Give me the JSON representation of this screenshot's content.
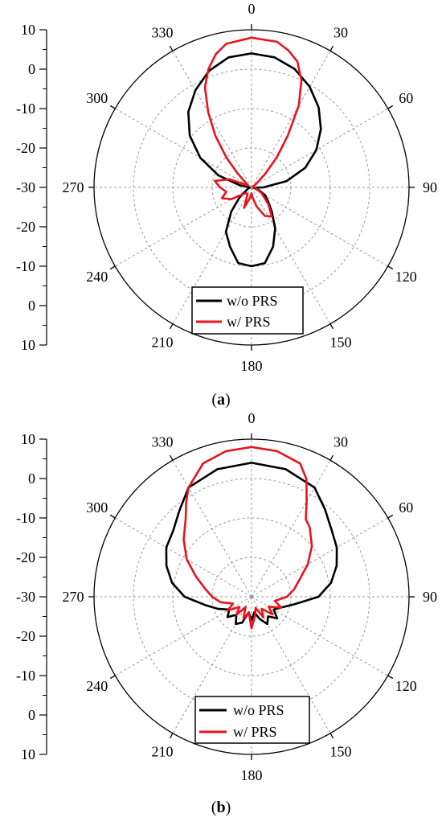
{
  "figure": {
    "captions": [
      "(a)",
      "(b)"
    ]
  },
  "colors": {
    "series_without": "#000000",
    "series_with": "#e8141b",
    "grid": "#9a9a9a",
    "legend_border": "#000000"
  },
  "chart_data": [
    {
      "type": "polar-line",
      "panel": "a",
      "caption": {
        "open": "(",
        "letter": "a",
        "close": ")"
      },
      "r_range": [
        -30,
        10
      ],
      "r_ticks": [
        10,
        0,
        -10,
        -20,
        -30
      ],
      "r_tick_labels": [
        "10",
        "0",
        "-10",
        "-20",
        "-30",
        "-20",
        "-10",
        "0",
        "10"
      ],
      "angle_labels": [
        "0",
        "30",
        "60",
        "90",
        "120",
        "150",
        "180",
        "210",
        "240",
        "270",
        "300",
        "330"
      ],
      "grid": true,
      "legend": {
        "position": "bottom-center",
        "entries": [
          "w/o PRS",
          "w/ PRS"
        ]
      },
      "series": [
        {
          "name": "w/o PRS",
          "color": "#000000",
          "points": [
            [
              0,
              4
            ],
            [
              10,
              3.5
            ],
            [
              20,
              2
            ],
            [
              30,
              -0.5
            ],
            [
              40,
              -3.5
            ],
            [
              50,
              -7
            ],
            [
              60,
              -11
            ],
            [
              70,
              -15.5
            ],
            [
              80,
              -21
            ],
            [
              90,
              -27
            ],
            [
              100,
              -29.5
            ],
            [
              110,
              -28
            ],
            [
              120,
              -26
            ],
            [
              130,
              -24.5
            ],
            [
              140,
              -22
            ],
            [
              150,
              -18
            ],
            [
              160,
              -14
            ],
            [
              170,
              -10.5
            ],
            [
              180,
              -10
            ],
            [
              190,
              -10.5
            ],
            [
              200,
              -14
            ],
            [
              210,
              -17
            ],
            [
              220,
              -22
            ],
            [
              230,
              -26
            ],
            [
              240,
              -28.5
            ],
            [
              250,
              -29
            ],
            [
              260,
              -29.5
            ],
            [
              270,
              -29.5
            ],
            [
              280,
              -27
            ],
            [
              290,
              -21
            ],
            [
              300,
              -15
            ],
            [
              310,
              -9.5
            ],
            [
              320,
              -5
            ],
            [
              330,
              -1.5
            ],
            [
              340,
              1.5
            ],
            [
              350,
              3.5
            ],
            [
              360,
              4
            ]
          ]
        },
        {
          "name": "w/ PRS",
          "color": "#e8141b",
          "points": [
            [
              0,
              8
            ],
            [
              10,
              7.5
            ],
            [
              15,
              6
            ],
            [
              20,
              4
            ],
            [
              25,
              0
            ],
            [
              30,
              -6
            ],
            [
              35,
              -14
            ],
            [
              40,
              -20
            ],
            [
              45,
              -25
            ],
            [
              50,
              -28
            ],
            [
              60,
              -29.5
            ],
            [
              80,
              -29.5
            ],
            [
              100,
              -29
            ],
            [
              120,
              -27
            ],
            [
              135,
              -24
            ],
            [
              145,
              -21
            ],
            [
              155,
              -22
            ],
            [
              165,
              -25
            ],
            [
              175,
              -27.5
            ],
            [
              180,
              -28.5
            ],
            [
              190,
              -27
            ],
            [
              200,
              -24.5
            ],
            [
              210,
              -28
            ],
            [
              225,
              -28
            ],
            [
              240,
              -24
            ],
            [
              250,
              -22
            ],
            [
              260,
              -23.5
            ],
            [
              270,
              -22
            ],
            [
              280,
              -20.5
            ],
            [
              290,
              -24
            ],
            [
              300,
              -29
            ],
            [
              310,
              -28
            ],
            [
              315,
              -25
            ],
            [
              320,
              -20
            ],
            [
              325,
              -14
            ],
            [
              330,
              -8
            ],
            [
              335,
              -2
            ],
            [
              340,
              2
            ],
            [
              345,
              5
            ],
            [
              350,
              7
            ],
            [
              360,
              8
            ]
          ]
        }
      ]
    },
    {
      "type": "polar-line",
      "panel": "b",
      "caption": {
        "open": "(",
        "letter": "b",
        "close": ")"
      },
      "r_range": [
        -30,
        10
      ],
      "r_ticks": [
        10,
        0,
        -10,
        -20,
        -30
      ],
      "r_tick_labels": [
        "10",
        "0",
        "-10",
        "-20",
        "-30",
        "-20",
        "-10",
        "0",
        "10"
      ],
      "angle_labels": [
        "0",
        "30",
        "60",
        "90",
        "120",
        "150",
        "180",
        "210",
        "240",
        "270",
        "300",
        "330"
      ],
      "grid": true,
      "legend": {
        "position": "bottom-center",
        "entries": [
          "w/o PRS",
          "w/ PRS"
        ]
      },
      "series": [
        {
          "name": "w/o PRS",
          "color": "#000000",
          "points": [
            [
              0,
              4
            ],
            [
              15,
              3.5
            ],
            [
              30,
              2
            ],
            [
              40,
              -1
            ],
            [
              50,
              -3.5
            ],
            [
              60,
              -5
            ],
            [
              70,
              -7
            ],
            [
              80,
              -9.5
            ],
            [
              90,
              -13
            ],
            [
              100,
              -19
            ],
            [
              110,
              -22
            ],
            [
              120,
              -23.5
            ],
            [
              130,
              -21.5
            ],
            [
              140,
              -23.5
            ],
            [
              150,
              -22
            ],
            [
              160,
              -24
            ],
            [
              170,
              -26
            ],
            [
              180,
              -24
            ],
            [
              190,
              -26
            ],
            [
              200,
              -23
            ],
            [
              210,
              -22
            ],
            [
              220,
              -24
            ],
            [
              230,
              -22
            ],
            [
              240,
              -23.5
            ],
            [
              250,
              -21
            ],
            [
              260,
              -18
            ],
            [
              270,
              -13
            ],
            [
              280,
              -9.5
            ],
            [
              290,
              -7
            ],
            [
              300,
              -5
            ],
            [
              310,
              -4
            ],
            [
              320,
              -1.5
            ],
            [
              330,
              2
            ],
            [
              345,
              3.5
            ],
            [
              360,
              4
            ]
          ]
        },
        {
          "name": "w/ PRS",
          "color": "#e8141b",
          "points": [
            [
              0,
              8
            ],
            [
              10,
              7.5
            ],
            [
              20,
              6
            ],
            [
              25,
              3
            ],
            [
              30,
              -2
            ],
            [
              35,
              -6
            ],
            [
              40,
              -7
            ],
            [
              50,
              -10
            ],
            [
              60,
              -13.5
            ],
            [
              70,
              -17
            ],
            [
              80,
              -19
            ],
            [
              90,
              -21
            ],
            [
              100,
              -24
            ],
            [
              110,
              -22
            ],
            [
              120,
              -25
            ],
            [
              130,
              -23
            ],
            [
              140,
              -26
            ],
            [
              150,
              -24
            ],
            [
              160,
              -27
            ],
            [
              170,
              -25
            ],
            [
              180,
              -22
            ],
            [
              190,
              -26
            ],
            [
              200,
              -24
            ],
            [
              210,
              -27
            ],
            [
              220,
              -24
            ],
            [
              230,
              -26
            ],
            [
              240,
              -23
            ],
            [
              250,
              -25
            ],
            [
              260,
              -22
            ],
            [
              270,
              -20
            ],
            [
              280,
              -18
            ],
            [
              290,
              -15
            ],
            [
              300,
              -11
            ],
            [
              310,
              -7.5
            ],
            [
              320,
              -4
            ],
            [
              325,
              -1
            ],
            [
              330,
              2
            ],
            [
              340,
              6
            ],
            [
              350,
              7.5
            ],
            [
              360,
              8
            ]
          ]
        }
      ]
    }
  ]
}
